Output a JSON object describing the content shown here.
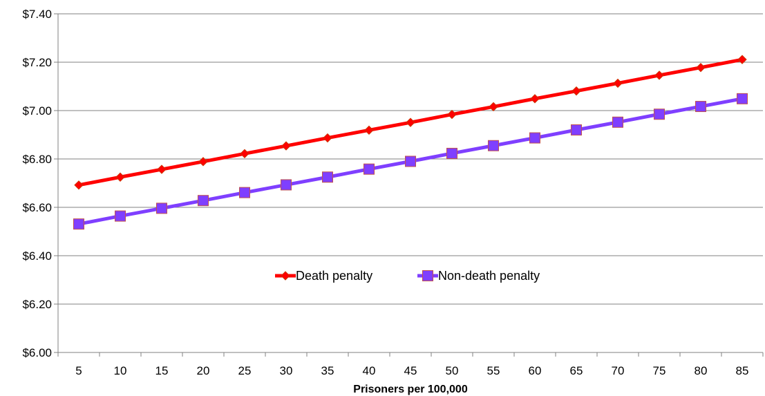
{
  "chart_data": {
    "type": "line",
    "title": "",
    "xlabel": "Prisoners per 100,000",
    "ylabel": "",
    "categories": [
      "5",
      "10",
      "15",
      "20",
      "25",
      "30",
      "35",
      "40",
      "45",
      "50",
      "55",
      "60",
      "65",
      "70",
      "75",
      "80",
      "85"
    ],
    "ylim": [
      6.0,
      7.4
    ],
    "yticks": [
      "$6.00",
      "$6.20",
      "$6.40",
      "$6.60",
      "$6.80",
      "$7.00",
      "$7.20",
      "$7.40"
    ],
    "ytick_values": [
      6.0,
      6.2,
      6.4,
      6.6,
      6.8,
      7.0,
      7.2,
      7.4
    ],
    "grid": true,
    "legend_position": "center",
    "series": [
      {
        "name": "Death penalty",
        "color": "#ff0000",
        "marker": "diamond",
        "values": [
          6.692,
          6.725,
          6.757,
          6.789,
          6.822,
          6.854,
          6.887,
          6.919,
          6.951,
          6.984,
          7.016,
          7.049,
          7.081,
          7.113,
          7.146,
          7.178,
          7.211
        ]
      },
      {
        "name": "Non-death penalty",
        "color": "#7f3fff",
        "marker": "square",
        "values": [
          6.531,
          6.564,
          6.596,
          6.628,
          6.661,
          6.693,
          6.725,
          6.758,
          6.79,
          6.823,
          6.855,
          6.887,
          6.92,
          6.952,
          6.985,
          7.017,
          7.049
        ]
      }
    ]
  }
}
